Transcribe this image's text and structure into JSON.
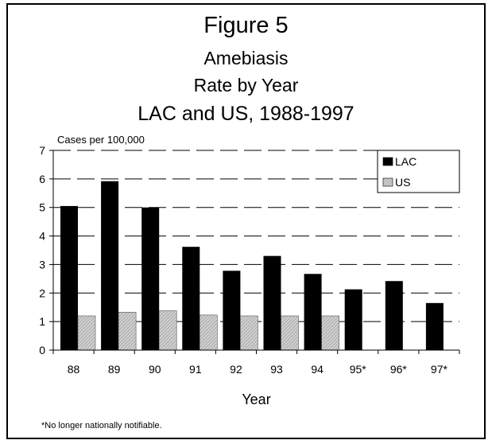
{
  "chart_data": {
    "type": "bar",
    "title": "Figure 5",
    "subtitles": [
      "Amebiasis",
      "Rate by Year",
      "LAC and US, 1988-1997"
    ],
    "xlabel": "Year",
    "ylabel": "Cases per 100,000",
    "ylim": [
      0,
      7
    ],
    "yticks": [
      0,
      1,
      2,
      3,
      4,
      5,
      6,
      7
    ],
    "categories": [
      "88",
      "89",
      "90",
      "91",
      "92",
      "93",
      "94",
      "95*",
      "96*",
      "97*"
    ],
    "series": [
      {
        "name": "LAC",
        "values": [
          5.05,
          5.92,
          5.0,
          3.62,
          2.78,
          3.3,
          2.67,
          2.13,
          2.42,
          1.65
        ],
        "color": "#000000"
      },
      {
        "name": "US",
        "values": [
          1.2,
          1.33,
          1.38,
          1.23,
          1.2,
          1.2,
          1.2,
          null,
          null,
          null
        ],
        "color": "#c8c8c8"
      }
    ],
    "grid": "horizontal dashed",
    "legend_position": "top-right",
    "footnote": "*No longer nationally notifiable."
  }
}
